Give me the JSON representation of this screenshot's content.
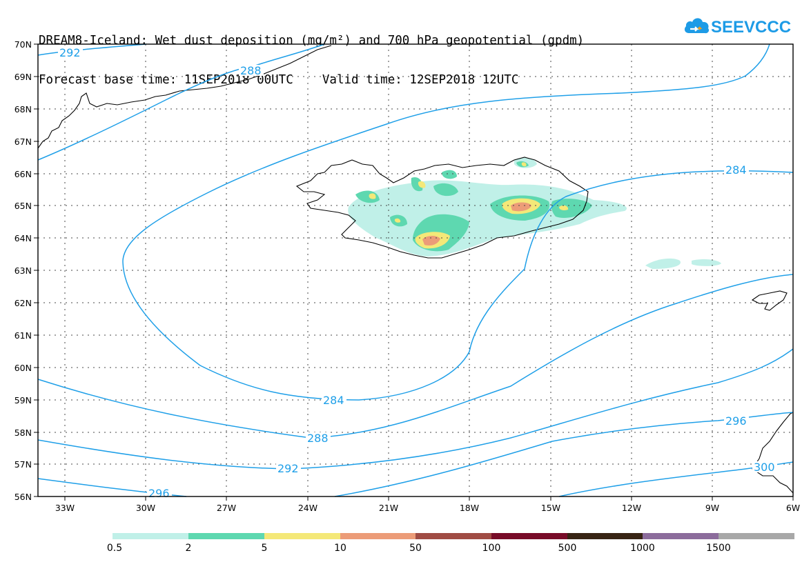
{
  "title": {
    "line1": "DREAM8-Iceland: Wet dust deposition (mg/m²) and 700 hPa geopotential (gpdm)",
    "line2": "Forecast base time: 11SEP2018 00UTC    Valid time: 12SEP2018 12UTC"
  },
  "logo": {
    "text": "SEEVCCC",
    "icon": "cloud-icon"
  },
  "lat_labels": [
    "70N",
    "69N",
    "68N",
    "67N",
    "66N",
    "65N",
    "64N",
    "63N",
    "62N",
    "61N",
    "60N",
    "59N",
    "58N",
    "57N",
    "56N"
  ],
  "lon_labels": [
    "33W",
    "30W",
    "27W",
    "24W",
    "21W",
    "18W",
    "15W",
    "12W",
    "9W",
    "6W"
  ],
  "contour_labels": [
    "292",
    "288",
    "284",
    "284",
    "288",
    "292",
    "296",
    "296",
    "300"
  ],
  "legend": {
    "labels": [
      "0.5",
      "2",
      "5",
      "10",
      "50",
      "100",
      "500",
      "1000",
      "1500"
    ],
    "colors": [
      "#c0f0e8",
      "#5ed8b0",
      "#f4e878",
      "#ec9c78",
      "#a04c44",
      "#780c28",
      "#382414",
      "#8c6c9c",
      "#a8a8a8"
    ]
  },
  "colors": {
    "contour": "#1e9fe8",
    "coast": "#000000",
    "grid": "#333333"
  }
}
